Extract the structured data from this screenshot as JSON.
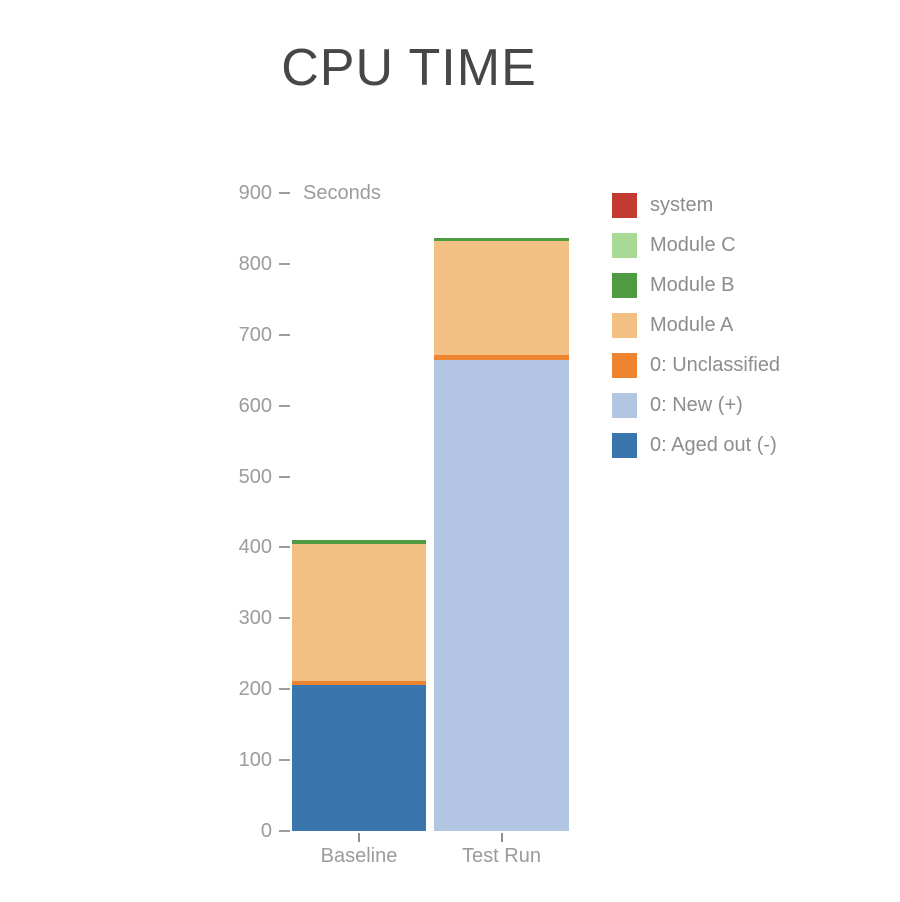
{
  "title": "CPU TIME",
  "chart_data": {
    "type": "bar",
    "stacked": true,
    "title": "CPU TIME",
    "ylabel": "Seconds",
    "ylim": [
      0,
      900
    ],
    "ytick_step": 100,
    "yticks": [
      900,
      800,
      700,
      600,
      500,
      400,
      300,
      200,
      100,
      0
    ],
    "grid": false,
    "legend_position": "right",
    "categories": [
      "Baseline",
      "Test Run"
    ],
    "series": [
      {
        "name": "0: Aged out (-)",
        "color": "#3a76ad",
        "values": [
          206,
          0
        ]
      },
      {
        "name": "0: New (+)",
        "color": "#b2c5e3",
        "values": [
          0,
          665
        ]
      },
      {
        "name": "0: Unclassified",
        "color": "#ee8330",
        "values": [
          6,
          6
        ]
      },
      {
        "name": "Module A",
        "color": "#f3c083",
        "values": [
          193,
          161
        ]
      },
      {
        "name": "Module B",
        "color": "#4e9b42",
        "values": [
          5,
          5
        ]
      },
      {
        "name": "Module C",
        "color": "#a8da96",
        "values": [
          0,
          0
        ]
      },
      {
        "name": "system",
        "color": "#c23a30",
        "values": [
          0,
          0
        ]
      }
    ],
    "totals": [
      410,
      837
    ]
  },
  "legend": {
    "items": [
      {
        "label": "system",
        "color": "#c23a30"
      },
      {
        "label": "Module C",
        "color": "#a8da96"
      },
      {
        "label": "Module B",
        "color": "#4e9b42"
      },
      {
        "label": "Module A",
        "color": "#f3c083"
      },
      {
        "label": "0: Unclassified",
        "color": "#ee8330"
      },
      {
        "label": "0: New (+)",
        "color": "#b2c5e3"
      },
      {
        "label": "0: Aged out (-)",
        "color": "#3a76ad"
      }
    ]
  }
}
